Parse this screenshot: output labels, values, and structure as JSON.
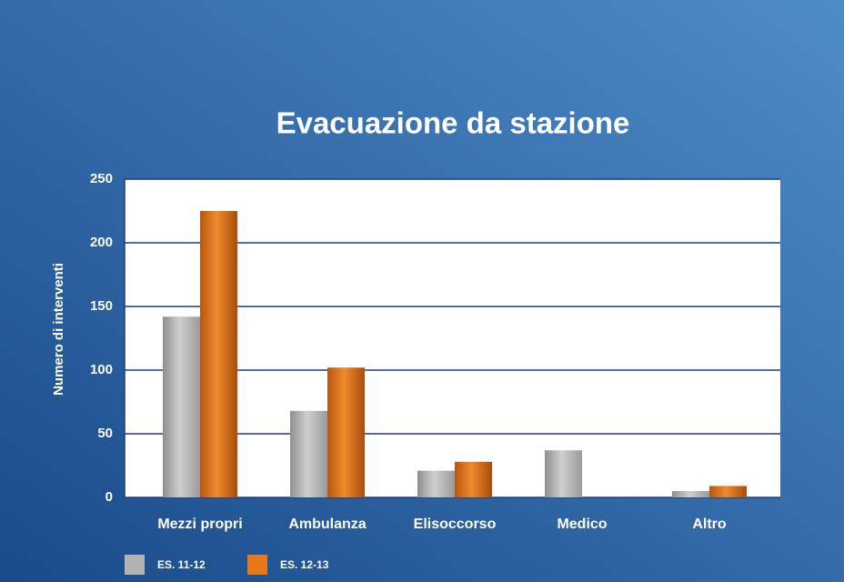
{
  "chart_data": {
    "type": "bar",
    "title": "Evacuazione da stazione",
    "y_label": "Numero di interventi",
    "categories": [
      "Mezzi propri",
      "Ambulanza",
      "Elisoccorso",
      "Medico",
      "Altro"
    ],
    "series": [
      {
        "name": "ES. 11-12",
        "color": "#b3b3b3",
        "values": [
          142,
          68,
          21,
          37,
          5
        ]
      },
      {
        "name": "ES. 12-13",
        "color": "#e8781a",
        "values": [
          225,
          102,
          28,
          0,
          9
        ]
      }
    ],
    "ylim": [
      0,
      250
    ],
    "yticks": [
      0,
      50,
      100,
      150,
      200,
      250
    ],
    "grid": true
  }
}
